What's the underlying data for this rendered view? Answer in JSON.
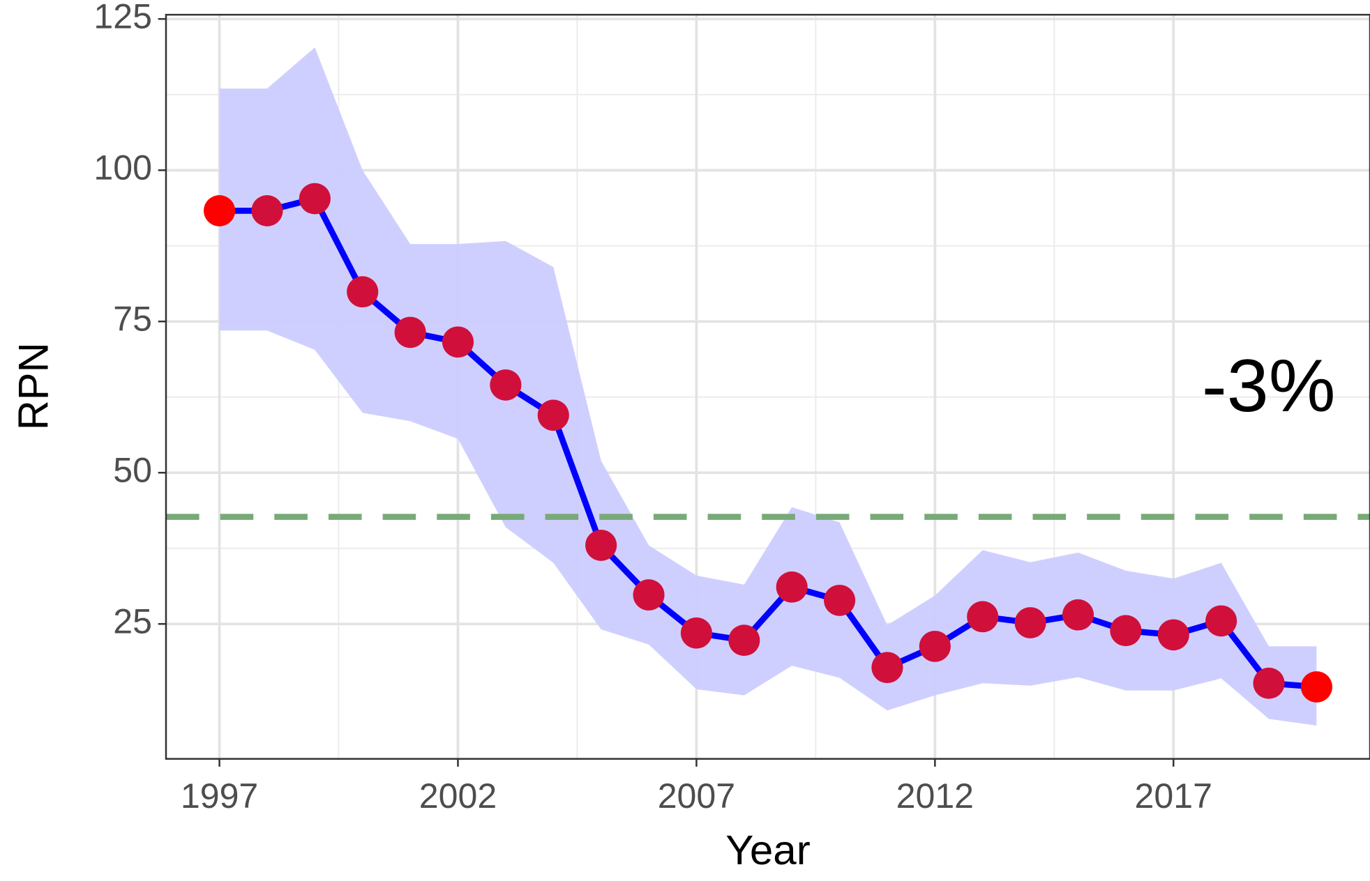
{
  "chart_data": {
    "type": "line",
    "x_label": "Year",
    "y_label": "RPN",
    "annotation": "-3%",
    "x": [
      1997,
      1998,
      1999,
      2000,
      2001,
      2002,
      2003,
      2004,
      2005,
      2006,
      2007,
      2008,
      2009,
      2010,
      2011,
      2012,
      2013,
      2014,
      2015,
      2016,
      2017,
      2018,
      2019,
      2020
    ],
    "series": [
      {
        "color": "#0000ff",
        "point_color": "#d0103a",
        "endpoint_color": "#ff0000",
        "values": [
          93.3,
          93.3,
          95.3,
          79.9,
          73.2,
          71.6,
          64.5,
          59.5,
          38.0,
          29.8,
          23.5,
          22.3,
          31.1,
          28.9,
          17.8,
          21.3,
          26.2,
          25.2,
          26.5,
          23.9,
          23.2,
          25.5,
          15.2,
          14.6
        ],
        "upper": [
          113.5,
          113.5,
          120.3,
          100.0,
          87.8,
          87.8,
          88.3,
          84.0,
          52.0,
          38.0,
          33.0,
          31.5,
          44.3,
          41.8,
          24.8,
          29.7,
          37.2,
          35.2,
          36.8,
          33.8,
          32.5,
          35.1,
          21.3,
          21.3
        ],
        "lower": [
          73.5,
          73.5,
          70.3,
          59.9,
          58.5,
          55.6,
          41.0,
          35.1,
          24.1,
          21.6,
          14.2,
          13.2,
          18.1,
          16.1,
          10.7,
          13.2,
          15.2,
          14.8,
          16.2,
          14.0,
          14.0,
          16.0,
          9.3,
          8.2
        ],
        "band_color": "#ccccff"
      }
    ],
    "reference_line": {
      "value": 42.7,
      "color": "#77aa77"
    },
    "xlim": [
      1995.88,
      2021.12
    ],
    "xticks": [
      1997,
      2002,
      2007,
      2012,
      2017
    ],
    "ylim": [
      2.7,
      125.7
    ],
    "yticks": [
      25,
      50,
      75,
      100,
      125
    ],
    "grid": true,
    "minor_grid": true
  }
}
